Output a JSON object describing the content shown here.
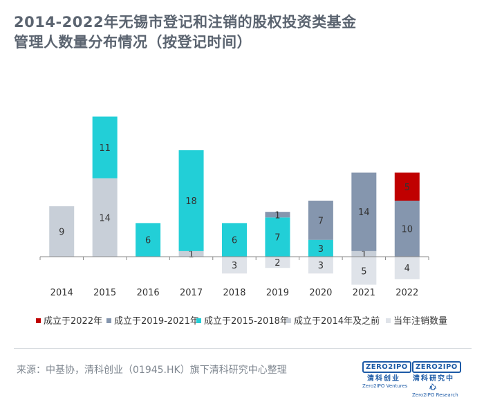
{
  "title": {
    "line1": "2014-2022年无锡市登记和注销的股权投资类基金",
    "line2": "管理人数量分布情况（按登记时间）"
  },
  "chart_data": {
    "type": "bar",
    "stacked": true,
    "categories": [
      "2014",
      "2015",
      "2016",
      "2017",
      "2018",
      "2019",
      "2020",
      "2021",
      "2022"
    ],
    "series": [
      {
        "name": "成立于2014年及之前",
        "color": "#c8cfd8",
        "values": [
          9,
          14,
          0,
          1,
          0,
          0,
          0,
          1,
          0
        ]
      },
      {
        "name": "成立于2015-2018年",
        "color": "#22cfd7",
        "values": [
          0,
          11,
          6,
          18,
          6,
          7,
          3,
          0,
          0
        ]
      },
      {
        "name": "成立于2019-2021年",
        "color": "#8596ae",
        "values": [
          0,
          0,
          0,
          0,
          0,
          1,
          7,
          14,
          10
        ]
      },
      {
        "name": "成立于2022年",
        "color": "#c00000",
        "values": [
          0,
          0,
          0,
          0,
          0,
          0,
          0,
          0,
          5
        ]
      },
      {
        "name": "当年注销数量",
        "color": "#dfe3e9",
        "values": [
          0,
          0,
          0,
          0,
          3,
          2,
          3,
          5,
          4
        ],
        "direction": "down"
      }
    ],
    "data_labels": [
      [
        "9",
        "",
        "",
        "",
        "",
        ""
      ],
      [
        "14",
        "11",
        "",
        "",
        ""
      ],
      [
        "",
        "6",
        "",
        "",
        ""
      ],
      [
        "1",
        "18",
        "",
        "",
        ""
      ],
      [
        "",
        "6",
        "",
        "",
        "3"
      ],
      [
        "",
        "7",
        "1",
        "",
        "2"
      ],
      [
        "",
        "3",
        "7",
        "",
        "3"
      ],
      [
        "1",
        "",
        "14",
        "",
        "5"
      ],
      [
        "",
        "",
        "10",
        "5",
        "4"
      ]
    ],
    "legend": [
      "成立于2022年",
      "成立于2019-2021年",
      "成立于2015-2018年",
      "成立于2014年及之前",
      "当年注销数量"
    ],
    "legend_position": "bottom",
    "xlabel": "",
    "ylabel": "",
    "ylim": [
      -6,
      25
    ]
  },
  "footer": {
    "source": "来源：中基协，清科创业（01945.HK）旗下清科研究中心整理",
    "logo1": {
      "box": "ZERO2IPO",
      "cn": "清科创业",
      "en": "Zero2IPO Ventures"
    },
    "logo2": {
      "box": "ZERO2IPO",
      "cn": "清科研究中心",
      "en": "Zero2IPO Research"
    }
  }
}
